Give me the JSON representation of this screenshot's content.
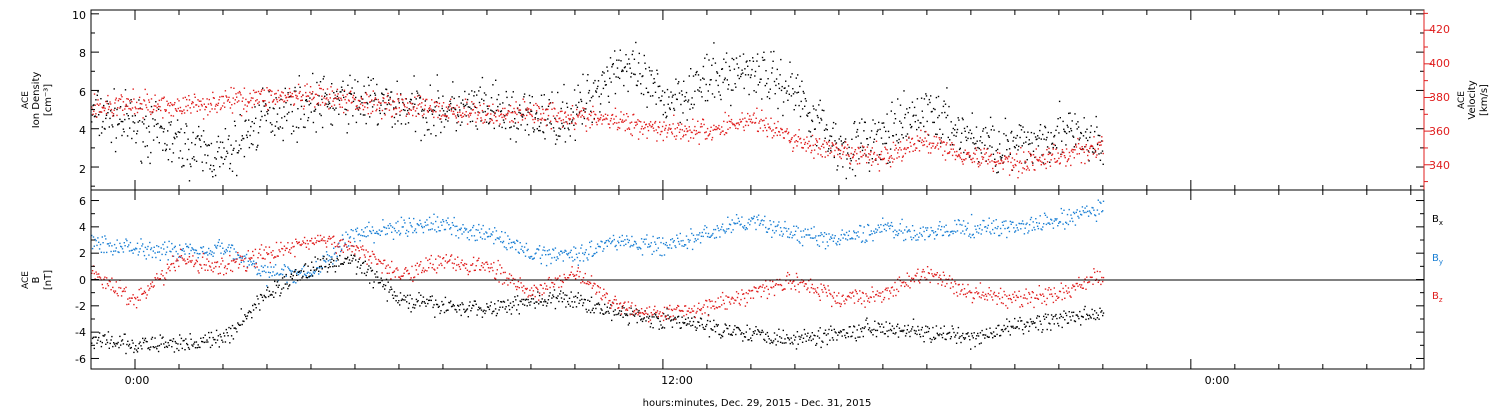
{
  "xlabel": "hours:minutes, Dec. 29, 2015 - Dec. 31, 2015",
  "x_ticks": [
    "0:00",
    "12:00",
    "0:00"
  ],
  "x_range_hours": [
    -1,
    29.3
  ],
  "panels": {
    "top": {
      "ylabel_left": [
        "ACE",
        "Ion Density",
        "[cm⁻³]"
      ],
      "ylabel_right": [
        "ACE",
        "Velocity",
        "[km/s]"
      ],
      "left_ticks": [
        "2",
        "4",
        "6",
        "8",
        "10"
      ],
      "right_ticks": [
        "340",
        "360",
        "380",
        "400",
        "420"
      ]
    },
    "bottom": {
      "ylabel": [
        "ACE",
        "B",
        "[nT]"
      ],
      "ticks": [
        "-6",
        "-4",
        "-2",
        "0",
        "2",
        "4",
        "6"
      ],
      "legend": {
        "bx": {
          "base": "B",
          "sub": "x"
        },
        "by": {
          "base": "B",
          "sub": "y"
        },
        "bz": {
          "base": "B",
          "sub": "z"
        }
      }
    }
  },
  "colors": {
    "black": "#000000",
    "red": "#e01e1e",
    "blue": "#1a7fd4"
  },
  "chart_data": [
    {
      "type": "scatter",
      "panel": "top",
      "xlabel": "hours:minutes, Dec. 29, 2015 - Dec. 31, 2015",
      "ylabel": "ACE Ion Density [cm⁻³]",
      "ylabel_right": "ACE Velocity [km/s]",
      "ylim": [
        0.8,
        10.2
      ],
      "ylim_right": [
        325,
        432
      ],
      "x_hours": [
        -1,
        0,
        1,
        2,
        3,
        4,
        5,
        6,
        7,
        8,
        9,
        10,
        11,
        12,
        13,
        14,
        15,
        16,
        17,
        18,
        19,
        20,
        21,
        22
      ],
      "series": [
        {
          "axis": "left",
          "color": "black",
          "values": [
            4.8,
            4.2,
            3.2,
            2.5,
            4.8,
            5.3,
            5.5,
            5.2,
            5.0,
            5.0,
            4.5,
            4.8,
            7.5,
            5.5,
            6.5,
            7.2,
            6.0,
            3.0,
            3.5,
            5.0,
            3.5,
            3.0,
            4.0,
            3.0
          ]
        },
        {
          "axis": "right",
          "color": "red",
          "values": [
            374,
            376,
            375,
            378,
            381,
            380,
            378,
            376,
            373,
            370,
            372,
            369,
            366,
            362,
            360,
            368,
            355,
            347,
            345,
            355,
            345,
            342,
            345,
            352
          ]
        }
      ]
    },
    {
      "type": "scatter",
      "panel": "bottom",
      "xlabel": "hours:minutes, Dec. 29, 2015 - Dec. 31, 2015",
      "ylabel": "ACE B [nT]",
      "ylim": [
        -6.8,
        6.8
      ],
      "x_hours": [
        -1,
        0,
        1,
        2,
        3,
        4,
        5,
        6,
        7,
        8,
        9,
        10,
        11,
        12,
        13,
        14,
        15,
        16,
        17,
        18,
        19,
        20,
        21,
        22
      ],
      "series": [
        {
          "name": "Bx",
          "color": "black",
          "values": [
            -4.5,
            -5.0,
            -4.8,
            -4.5,
            -1.0,
            1.0,
            1.5,
            -1.5,
            -2.0,
            -2.2,
            -1.5,
            -1.5,
            -2.5,
            -3.0,
            -3.5,
            -4.0,
            -4.5,
            -4.0,
            -3.5,
            -4.0,
            -4.5,
            -3.5,
            -3.0,
            -2.5
          ]
        },
        {
          "name": "By",
          "color": "blue",
          "values": [
            2.8,
            2.5,
            2.2,
            2.5,
            0.5,
            0.5,
            3.5,
            4.0,
            4.2,
            3.5,
            2.0,
            2.0,
            3.0,
            2.5,
            3.5,
            4.5,
            3.5,
            3.0,
            4.0,
            3.5,
            4.0,
            4.0,
            4.5,
            5.5
          ]
        },
        {
          "name": "Bz",
          "color": "red",
          "values": [
            0.5,
            -1.5,
            1.5,
            1.0,
            2.0,
            3.0,
            2.5,
            0.5,
            1.5,
            1.0,
            -1.0,
            0.5,
            -2.0,
            -2.5,
            -2.0,
            -1.0,
            0.0,
            -1.5,
            -1.0,
            0.5,
            -1.0,
            -1.5,
            -1.0,
            0.5
          ]
        }
      ]
    }
  ]
}
